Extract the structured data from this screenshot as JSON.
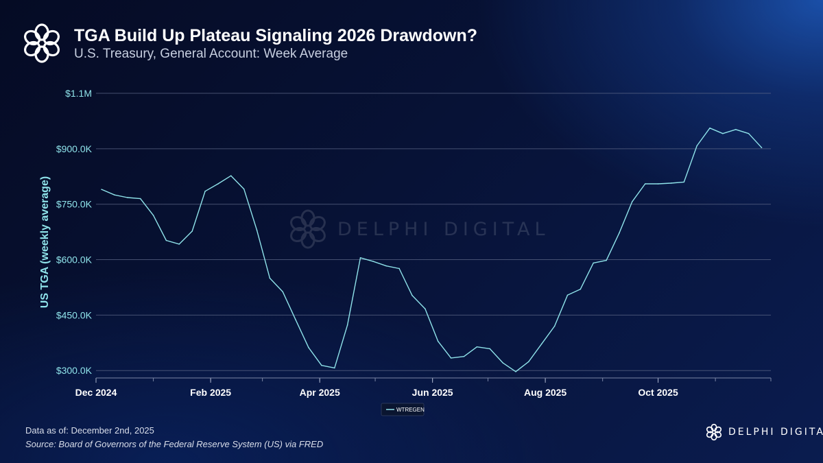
{
  "header": {
    "title": "TGA Build Up Plateau Signaling 2026 Drawdown?",
    "subtitle": "U.S. Treasury, General Account: Week Average",
    "logo_icon": "delphi-flower-logo"
  },
  "watermark": {
    "text": "DELPHI DIGITAL"
  },
  "footer": {
    "data_note": "Data as of: December 2nd, 2025",
    "source": "Source: Board of Governors of the Federal Reserve System (US) via FRED",
    "brand_text": "DELPHI DIGITAL"
  },
  "colors": {
    "line": "#8fe3ea",
    "axis_text": "#8fe3ea",
    "tick_text": "#ffffff",
    "grid": "#5b6685",
    "background": "#071236"
  },
  "chart_data": {
    "type": "line",
    "title": "TGA Build Up Plateau Signaling 2026 Drawdown?",
    "subtitle": "U.S. Treasury, General Account: Week Average",
    "xlabel": "",
    "ylabel": "US TGA (weekly average)",
    "x_tick_labels": [
      "Dec 2024",
      "Feb 2025",
      "Apr 2025",
      "Jun 2025",
      "Aug 2025",
      "Oct 2025"
    ],
    "x_ticks": [
      "2024-12-01",
      "2025-02-01",
      "2025-04-01",
      "2025-06-01",
      "2025-08-01",
      "2025-10-01"
    ],
    "y_tick_labels": [
      "$300.0K",
      "$450.0K",
      "$600.0K",
      "$750.0K",
      "$900.0K",
      "$1.1M"
    ],
    "y_ticks": [
      300000,
      450000,
      600000,
      750000,
      900000,
      1050000
    ],
    "xlim": [
      "2024-12-01",
      "2025-12-01"
    ],
    "ylim": [
      280000,
      1050000
    ],
    "grid": true,
    "legend": "bottom-center",
    "series": [
      {
        "name": "WTREGEN",
        "x": [
          "2024-12-04",
          "2024-12-11",
          "2024-12-18",
          "2024-12-25",
          "2025-01-01",
          "2025-01-08",
          "2025-01-15",
          "2025-01-22",
          "2025-01-29",
          "2025-02-05",
          "2025-02-12",
          "2025-02-19",
          "2025-02-26",
          "2025-03-05",
          "2025-03-12",
          "2025-03-19",
          "2025-03-26",
          "2025-04-02",
          "2025-04-09",
          "2025-04-16",
          "2025-04-23",
          "2025-04-30",
          "2025-05-07",
          "2025-05-14",
          "2025-05-21",
          "2025-05-28",
          "2025-06-04",
          "2025-06-11",
          "2025-06-18",
          "2025-06-25",
          "2025-07-02",
          "2025-07-09",
          "2025-07-16",
          "2025-07-23",
          "2025-07-30",
          "2025-08-06",
          "2025-08-13",
          "2025-08-20",
          "2025-08-27",
          "2025-09-03",
          "2025-09-10",
          "2025-09-17",
          "2025-09-24",
          "2025-10-01",
          "2025-10-08",
          "2025-10-15",
          "2025-10-22",
          "2025-10-29",
          "2025-11-05",
          "2025-11-12",
          "2025-11-19",
          "2025-11-26"
        ],
        "values": [
          790000,
          775000,
          768000,
          765000,
          720000,
          652000,
          642000,
          677000,
          785000,
          805000,
          827000,
          791000,
          680000,
          550000,
          513000,
          437000,
          362000,
          314000,
          307000,
          423000,
          605000,
          595000,
          583000,
          576000,
          503000,
          467000,
          379000,
          334000,
          338000,
          364000,
          359000,
          321000,
          297000,
          324000,
          372000,
          420000,
          504000,
          520000,
          591000,
          598000,
          672000,
          757000,
          805000,
          805000,
          807000,
          810000,
          908000,
          956000,
          941000,
          952000,
          941000,
          903000
        ]
      }
    ]
  }
}
